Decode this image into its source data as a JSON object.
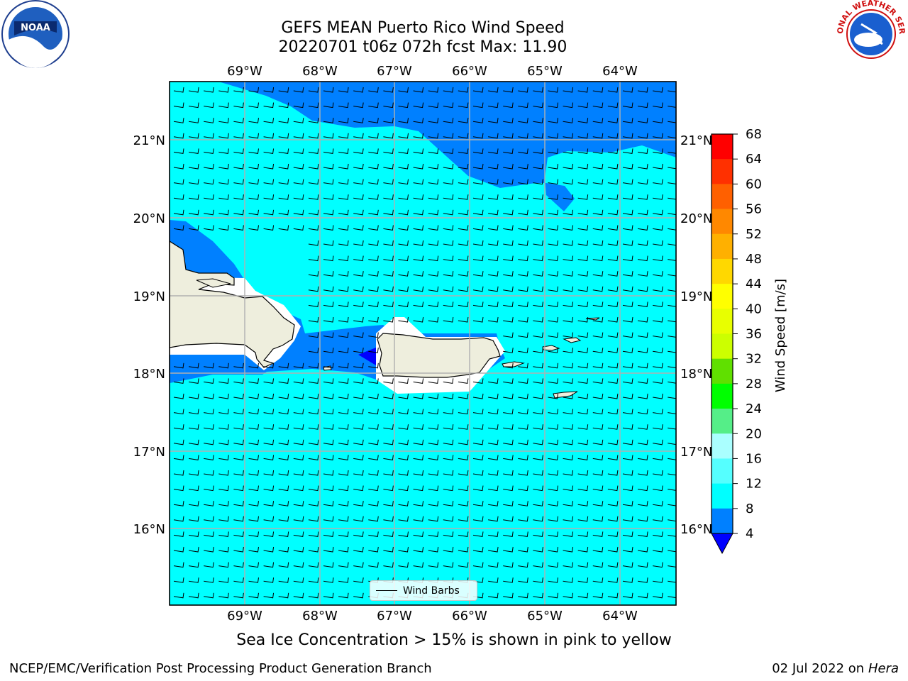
{
  "header": {
    "title_line1": "GEFS MEAN Puerto Rico Wind Speed",
    "title_line2": "20220701 t06z 072h fcst   Max: 11.90"
  },
  "logos": {
    "left": "NOAA",
    "right": "NATIONAL WEATHER SERVICE"
  },
  "map": {
    "lon_labels": [
      "69°W",
      "68°W",
      "67°W",
      "66°W",
      "65°W",
      "64°W"
    ],
    "lat_labels": [
      "21°N",
      "20°N",
      "19°N",
      "18°N",
      "17°N",
      "16°N"
    ],
    "ocean_color": "#00ffff",
    "band_color": "#0080ff",
    "land_color": "#eeeedd",
    "gridline_color": "#b0b0b0"
  },
  "colorbar": {
    "label": "Wind Speed [m/s]",
    "ticks": [
      "68",
      "64",
      "60",
      "56",
      "52",
      "48",
      "44",
      "40",
      "36",
      "32",
      "28",
      "24",
      "20",
      "16",
      "12",
      "8",
      "4"
    ],
    "colors": [
      "#ff0000",
      "#ff3000",
      "#ff6000",
      "#ff8800",
      "#ffb000",
      "#ffd800",
      "#ffff00",
      "#e8ff00",
      "#ccff00",
      "#a0f000",
      "#60e000",
      "#00ff00",
      "#00e060",
      "#55ff99",
      "#aaffff",
      "#55ffff",
      "#00ffff",
      "#0080ff"
    ],
    "extend_color": "#0000ff"
  },
  "legend": {
    "label": "Wind Barbs"
  },
  "footer": {
    "note": "Sea Ice Concentration > 15% is shown in pink to yellow",
    "credit": "NCEP/EMC/Verification Post Processing Product Generation Branch",
    "date": "02 Jul 2022 on",
    "host": "Hera"
  }
}
